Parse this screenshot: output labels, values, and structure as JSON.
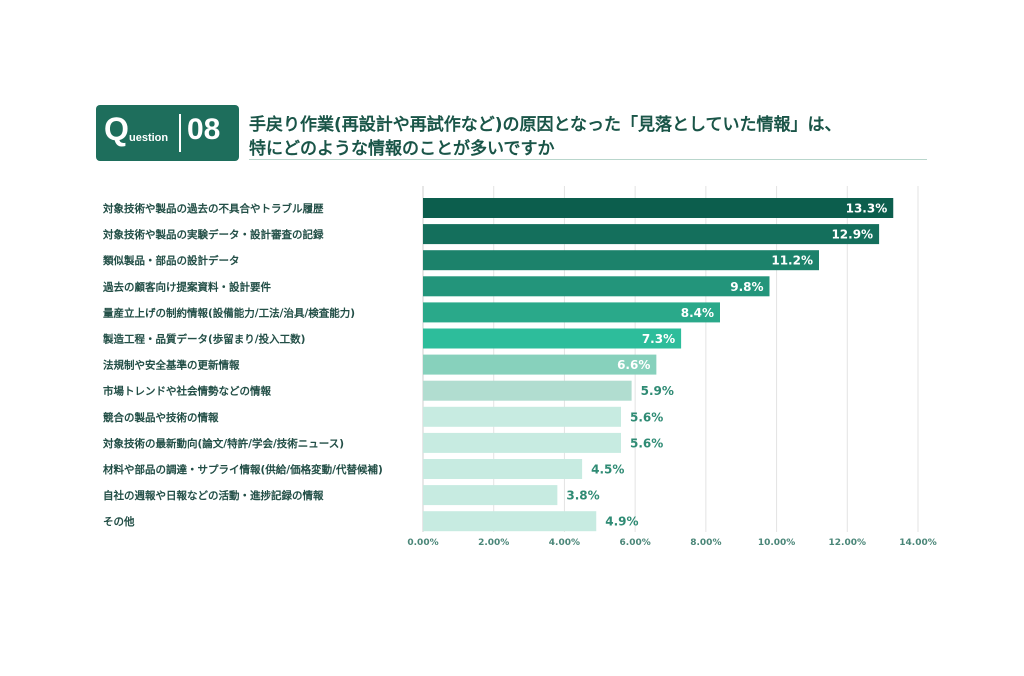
{
  "header": {
    "question_word": "uestion",
    "question_letter": "Q",
    "question_number": "08",
    "title_line1": "手戻り作業(再設計や再試作など)の原因となった「見落としていた情報」は、",
    "title_line2": "特にどのような情報のことが多いですか"
  },
  "chart_data": {
    "type": "bar",
    "orientation": "horizontal",
    "categories": [
      "対象技術や製品の過去の不具合やトラブル履歴",
      "対象技術や製品の実験データ・設計審査の記録",
      "類似製品・部品の設計データ",
      "過去の顧客向け提案資料・設計要件",
      "量産立上げの制約情報(設備能力/工法/治具/検査能力)",
      "製造工程・品質データ(歩留まり/投入工数)",
      "法規制や安全基準の更新情報",
      "市場トレンドや社会情勢などの情報",
      "競合の製品や技術の情報",
      "対象技術の最新動向(論文/特許/学会/技術ニュース)",
      "材料や部品の調達・サプライ情報(供給/価格変動/代替候補)",
      "自社の週報や日報などの活動・進捗記録の情報",
      "その他"
    ],
    "values": [
      13.3,
      12.9,
      11.2,
      9.8,
      8.4,
      7.3,
      6.6,
      5.9,
      5.6,
      5.6,
      4.5,
      3.8,
      4.9
    ],
    "value_labels": [
      "13.3%",
      "12.9%",
      "11.2%",
      "9.8%",
      "8.4%",
      "7.3%",
      "6.6%",
      "5.9%",
      "5.6%",
      "5.6%",
      "4.5%",
      "3.8%",
      "4.9%"
    ],
    "bar_colors": [
      "#0c5e4d",
      "#146f5c",
      "#1c826b",
      "#23957b",
      "#2aa98a",
      "#2dbd9b",
      "#87d1bc",
      "#b1ddd0",
      "#c7ebe1",
      "#c7ebe1",
      "#c7ebe1",
      "#c7ebe1",
      "#c7ebe1"
    ],
    "label_inside": [
      true,
      true,
      true,
      true,
      true,
      true,
      true,
      false,
      false,
      false,
      false,
      false,
      false
    ],
    "xlim": [
      0,
      14
    ],
    "xticks": [
      "0.00%",
      "2.00%",
      "4.00%",
      "6.00%",
      "8.00%",
      "10.00%",
      "12.00%",
      "14.00%"
    ],
    "grid": true,
    "title": "",
    "xlabel": "",
    "ylabel": ""
  },
  "colors": {
    "accent": "#1e6e5c",
    "text": "#234f47",
    "grid": "#e3e3e3",
    "outside_label": "#2f8b74"
  }
}
